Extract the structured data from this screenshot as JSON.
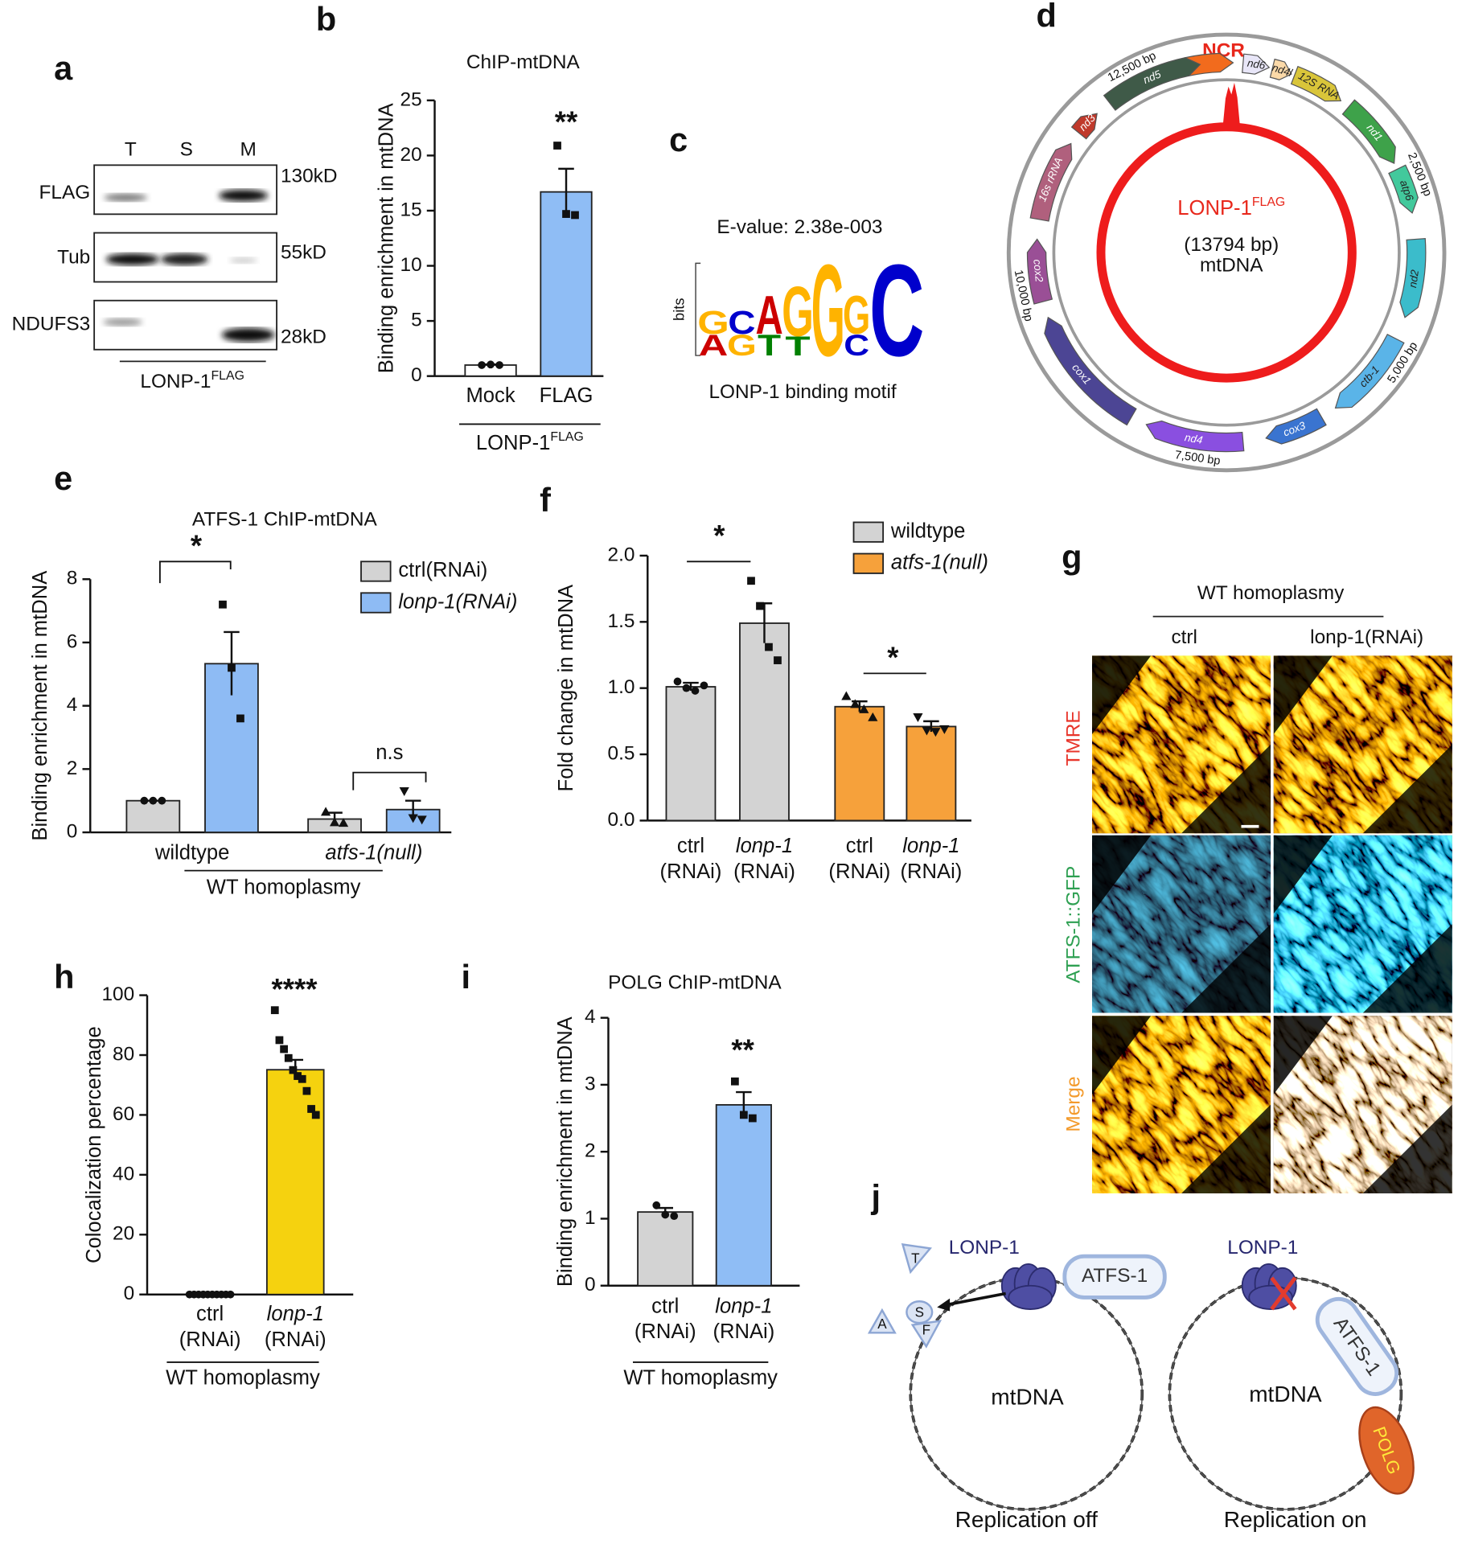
{
  "panels": {
    "a": {
      "label": "a",
      "lanes": [
        "T",
        "S",
        "M"
      ],
      "rows": [
        "FLAG",
        "Tub",
        "NDUFS3"
      ],
      "markers": [
        "130kD",
        "55kD",
        "28kD"
      ],
      "group": "LONP-1",
      "group_sup": "FLAG"
    },
    "c": {
      "label": "c",
      "evalue": "E-value: 2.38e-003",
      "axis": "bits",
      "letters": [
        "G",
        "C",
        "A",
        "G",
        "G",
        "G",
        "C",
        "A",
        "G",
        "T",
        "T",
        "C"
      ],
      "caption": "LONP-1 binding motif"
    },
    "d": {
      "label": "d",
      "ncr": "NCR",
      "ncr_color": "#f26b1d",
      "genes": [
        {
          "name": "nd6",
          "color": "#e8e6f8"
        },
        {
          "name": "nd4l",
          "color": "#fbd9a8"
        },
        {
          "name": "12S RNA",
          "color": "#d9c53a"
        },
        {
          "name": "nd1",
          "color": "#3ea24a"
        },
        {
          "name": "atp6",
          "color": "#42c99c"
        },
        {
          "name": "nd2",
          "color": "#3bbccb"
        },
        {
          "name": "ctb-1",
          "color": "#5ab4e8"
        },
        {
          "name": "cox3",
          "color": "#3a74d0"
        },
        {
          "name": "nd4",
          "color": "#8a4fe0"
        },
        {
          "name": "cox1",
          "color": "#4c4594"
        },
        {
          "name": "cox2",
          "color": "#9a4f96"
        },
        {
          "name": "16s rRNA",
          "color": "#b0607d"
        },
        {
          "name": "nd3",
          "color": "#c0392b"
        },
        {
          "name": "nd5",
          "color": "#3f5a48"
        }
      ],
      "scale": [
        "2,500 bp",
        "5,000 bp",
        "7,500 bp",
        "10,000 bp",
        "12,500 bp"
      ],
      "protein": "LONP-1",
      "protein_sup": "FLAG",
      "length": "(13794 bp)",
      "dna": "mtDNA"
    },
    "g": {
      "label": "g",
      "title": "WT homoplasmy",
      "columns": [
        "ctrl",
        "lonp-1(RNAi)"
      ],
      "rows": [
        "TMRE",
        "ATFS-1::GFP",
        "Merge"
      ]
    },
    "j": {
      "label": "j",
      "left": {
        "protein": "LONP-1",
        "partner": "ATFS-1",
        "fragments": [
          "T",
          "S",
          "A",
          "F"
        ],
        "dna": "mtDNA",
        "caption": "Replication off"
      },
      "right": {
        "protein": "LONP-1",
        "partner": "ATFS-1",
        "polymerase": "POLG",
        "dna": "mtDNA",
        "caption": "Replication on"
      }
    }
  },
  "chart_data": [
    {
      "panel": "b",
      "type": "bar",
      "title": "ChIP-mtDNA",
      "ylabel": "Binding enrichment in mtDNA",
      "categories": [
        "Mock",
        "FLAG"
      ],
      "values": [
        1.0,
        16.7
      ],
      "errors": [
        0.05,
        2.1
      ],
      "colors": [
        "#ffffff",
        "#8fbdf5"
      ],
      "points": [
        [
          1.0,
          1.05,
          1.0
        ],
        [
          20.9,
          14.7,
          14.6
        ]
      ],
      "point_markers": [
        "circle",
        "square"
      ],
      "ylim": [
        0,
        25
      ],
      "yticks": [
        0,
        5,
        10,
        15,
        20,
        25
      ],
      "annotations": [
        "**"
      ],
      "group_label": "LONP-1",
      "group_label_sup": "FLAG"
    },
    {
      "panel": "e",
      "type": "bar",
      "title": "ATFS-1 ChIP-mtDNA",
      "ylabel": "Binding enrichment in mtDNA",
      "categories": [
        "wildtype",
        "atfs-1(null)"
      ],
      "series": [
        {
          "name": "ctrl(RNAi)",
          "color": "#d3d3d3",
          "values": [
            1.0,
            0.42
          ],
          "errors": [
            0,
            0.2
          ],
          "points": [
            [
              1.0,
              1.0,
              1.0
            ],
            [
              0.65,
              0.32,
              0.3
            ]
          ],
          "point_markers": [
            "circle",
            "triangle-up"
          ]
        },
        {
          "name": "lonp-1(RNAi)",
          "color": "#8ebbf4",
          "values": [
            5.33,
            0.72
          ],
          "errors": [
            1.0,
            0.28
          ],
          "points": [
            [
              7.2,
              5.2,
              3.6
            ],
            [
              1.3,
              0.45,
              0.4
            ]
          ],
          "point_markers": [
            "square",
            "triangle-down"
          ]
        }
      ],
      "ylim": [
        0,
        8
      ],
      "yticks": [
        0,
        2,
        4,
        6,
        8
      ],
      "annotations": [
        "*",
        "n.s"
      ],
      "group_label": "WT homoplasmy",
      "legend": true
    },
    {
      "panel": "f",
      "type": "bar",
      "ylabel": "Fold change in mtDNA",
      "categories": [
        "ctrl",
        "lonp-1",
        "ctrl",
        "lonp-1"
      ],
      "category_sublabels": [
        "(RNAi)",
        "(RNAi)",
        "(RNAi)",
        "(RNAi)"
      ],
      "series": [
        {
          "name": "wildtype",
          "color": "#d3d3d3",
          "values": [
            1.01,
            1.49,
            null,
            null
          ],
          "errors": [
            0.03,
            0.15,
            null,
            null
          ],
          "points": [
            [
              1.05,
              1.0,
              0.98,
              1.02
            ],
            [
              1.81,
              1.62,
              1.31,
              1.21
            ],
            null,
            null
          ],
          "point_markers": [
            "circle",
            "square",
            null,
            null
          ]
        },
        {
          "name": "atfs-1(null)",
          "color": "#f6a13b",
          "values": [
            null,
            null,
            0.86,
            0.71
          ],
          "errors": [
            null,
            null,
            0.04,
            0.04
          ],
          "points": [
            null,
            null,
            [
              0.94,
              0.88,
              0.84,
              0.78
            ],
            [
              0.78,
              0.68,
              0.67,
              0.69
            ]
          ],
          "point_markers": [
            null,
            null,
            "triangle-up",
            "triangle-down"
          ]
        }
      ],
      "ylim": [
        0,
        2
      ],
      "yticks": [
        {
          "value": 0,
          "label": "0.0"
        },
        0.5,
        {
          "value": 1,
          "label": "1.0"
        },
        1.5,
        {
          "value": 2,
          "label": "2.0"
        }
      ],
      "annotations": [
        "*",
        "*"
      ],
      "legend": true
    },
    {
      "panel": "h",
      "type": "bar",
      "ylabel": "Colocalization percentage",
      "categories": [
        "ctrl",
        "lonp-1"
      ],
      "category_sublabels": [
        "(RNAi)",
        "(RNAi)"
      ],
      "values": [
        0,
        75.1
      ],
      "errors": [
        0,
        3.3
      ],
      "colors": [
        "#f5d20f",
        "#f5d20f"
      ],
      "points": [
        [
          0,
          0,
          0,
          0,
          0,
          0,
          0,
          0,
          0,
          0
        ],
        [
          95,
          85,
          82,
          79,
          75,
          73,
          72,
          68,
          62,
          60
        ]
      ],
      "point_markers": [
        "circle",
        "square"
      ],
      "ylim": [
        0,
        100
      ],
      "yticks": [
        0,
        20,
        40,
        60,
        80,
        100
      ],
      "annotations": [
        "****"
      ],
      "group_label": "WT homoplasmy"
    },
    {
      "panel": "i",
      "type": "bar",
      "title": "POLG ChIP-mtDNA",
      "ylabel": "Binding enrichment in mtDNA",
      "categories": [
        "ctrl",
        "lonp-1"
      ],
      "category_sublabels": [
        "(RNAi)",
        "(RNAi)"
      ],
      "values": [
        1.1,
        2.7
      ],
      "errors": [
        0.06,
        0.19
      ],
      "colors": [
        "#d3d3d3",
        "#8fbdf5"
      ],
      "points": [
        [
          1.2,
          1.06,
          1.04
        ],
        [
          3.05,
          2.55,
          2.5
        ]
      ],
      "point_markers": [
        "circle",
        "square"
      ],
      "ylim": [
        0,
        4
      ],
      "yticks": [
        0,
        1,
        2,
        3,
        4
      ],
      "annotations": [
        "**"
      ],
      "group_label": "WT homoplasmy"
    }
  ]
}
